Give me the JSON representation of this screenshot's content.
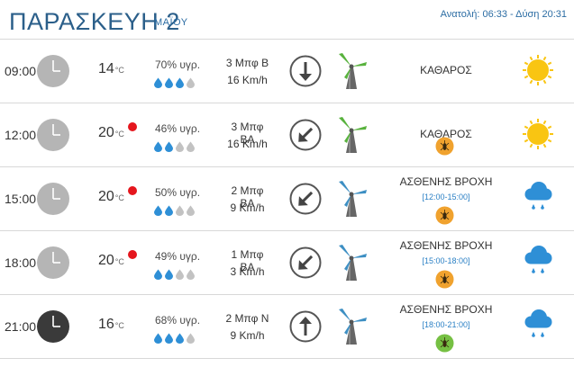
{
  "header": {
    "day": "ΠΑΡΑΣΚΕΥΗ 2",
    "month": "ΜΑΪΟΥ",
    "sun_times": "Ανατολή: 06:33 - Δύση 20:31"
  },
  "colors": {
    "title_blue": "#2b5f8a",
    "link_blue": "#2b80c5",
    "warning_red": "#e5161d",
    "sun_yellow": "#f9c512",
    "drop_blue": "#2e8fd6",
    "drop_gray": "#c2c2c2"
  },
  "rows": [
    {
      "time": "09:00",
      "clock_icon": "clock-icon-light",
      "temperature": "14",
      "unit": "°C",
      "warning": false,
      "humidity": "70% υγρ.",
      "humidity_drops_filled": 3,
      "wind_beaufort": "3 Μπφ Β",
      "wind_speed": "16 Km/h",
      "wind_arrow": "arrow-south-icon",
      "turbine_color": "green",
      "condition": "ΚΑΘΑΡΟΣ",
      "condition_time": "",
      "insect_icon": "",
      "weather_icon": "sun-icon"
    },
    {
      "time": "12:00",
      "clock_icon": "clock-icon-light",
      "temperature": "20",
      "unit": "°C",
      "warning": true,
      "humidity": "46% υγρ.",
      "humidity_drops_filled": 2,
      "wind_beaufort": "3 Μπφ ΒΑ",
      "wind_speed": "16 Km/h",
      "wind_arrow": "arrow-southwest-icon",
      "turbine_color": "green",
      "condition": "ΚΑΘΑΡΟΣ",
      "condition_time": "",
      "insect_icon": "mosquito-orange-icon",
      "weather_icon": "sun-icon"
    },
    {
      "time": "15:00",
      "clock_icon": "clock-icon-light",
      "temperature": "20",
      "unit": "°C",
      "warning": true,
      "humidity": "50% υγρ.",
      "humidity_drops_filled": 2,
      "wind_beaufort": "2 Μπφ ΒΑ",
      "wind_speed": "9 Km/h",
      "wind_arrow": "arrow-southwest-icon",
      "turbine_color": "blue",
      "condition": "ΑΣΘΕΝΗΣ ΒΡΟΧΗ",
      "condition_time": "[12:00-15:00]",
      "insect_icon": "mosquito-orange-icon",
      "weather_icon": "rain-cloud-icon"
    },
    {
      "time": "18:00",
      "clock_icon": "clock-icon-light",
      "temperature": "20",
      "unit": "°C",
      "warning": true,
      "humidity": "49% υγρ.",
      "humidity_drops_filled": 2,
      "wind_beaufort": "1 Μπφ ΒΑ",
      "wind_speed": "3 Km/h",
      "wind_arrow": "arrow-southwest-icon",
      "turbine_color": "blue",
      "condition": "ΑΣΘΕΝΗΣ ΒΡΟΧΗ",
      "condition_time": "[15:00-18:00]",
      "insect_icon": "mosquito-orange-icon",
      "weather_icon": "rain-cloud-icon"
    },
    {
      "time": "21:00",
      "clock_icon": "clock-icon-dark",
      "temperature": "16",
      "unit": "°C",
      "warning": false,
      "humidity": "68% υγρ.",
      "humidity_drops_filled": 3,
      "wind_beaufort": "2 Μπφ Ν",
      "wind_speed": "9 Km/h",
      "wind_arrow": "arrow-north-icon",
      "turbine_color": "blue",
      "condition": "ΑΣΘΕΝΗΣ ΒΡΟΧΗ",
      "condition_time": "[18:00-21:00]",
      "insect_icon": "mosquito-green-icon",
      "weather_icon": "rain-cloud-icon"
    }
  ]
}
